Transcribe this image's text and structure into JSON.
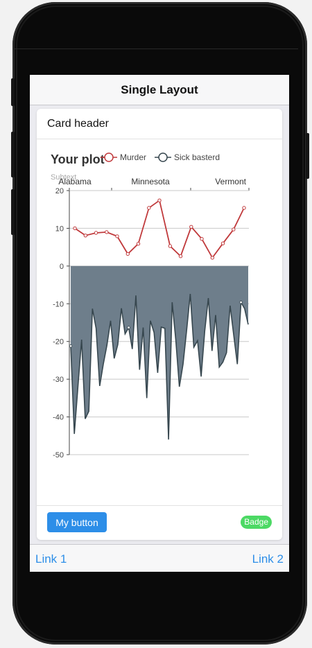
{
  "navbar": {
    "title": "Single Layout"
  },
  "card": {
    "header": "Card header",
    "footer_button": "My button",
    "badge": "Badge"
  },
  "toolbar": {
    "link1": "Link 1",
    "link2": "Link 2"
  },
  "chart_data": {
    "type": "line",
    "title": "Your plot",
    "subtitle": "Subtext",
    "top_axis_labels": [
      "Alabama",
      "Minnesota",
      "Vermont"
    ],
    "ylim": [
      -50,
      20
    ],
    "yticks": [
      20,
      10,
      0,
      -10,
      -20,
      -30,
      -40,
      -50
    ],
    "grid": true,
    "legend_position": "top-right",
    "colors": {
      "murder": "#c0393b",
      "sick": "#37474f",
      "area_fill": "#6e7e8b"
    },
    "series": [
      {
        "name": "Murder",
        "type": "line",
        "values": [
          10,
          8.1,
          8.8,
          9.0,
          7.9,
          3.2,
          5.9,
          15.4,
          17.4,
          5.3,
          2.6,
          10.4,
          7.2,
          2.2,
          6.0,
          9.7,
          15.4
        ]
      },
      {
        "name": "Sick basterd",
        "type": "area",
        "values": [
          -21.2,
          -44.5,
          -32,
          -19.5,
          -40.5,
          -38.5,
          -11.3,
          -16.5,
          -31.8,
          -26,
          -21,
          -14.5,
          -24.5,
          -20.8,
          -11.2,
          -18,
          -16.3,
          -22,
          -7.8,
          -27.5,
          -16.3,
          -35,
          -14.5,
          -17.6,
          -28.3,
          -16.2,
          -16.5,
          -46,
          -9.6,
          -19.5,
          -32,
          -26,
          -17,
          -7.4,
          -21.5,
          -19.8,
          -29.3,
          -17.2,
          -8.5,
          -22.5,
          -13,
          -26.8,
          -25.5,
          -23,
          -10.5,
          -18.3,
          -26,
          -9.6,
          -11.3,
          -15.5
        ]
      }
    ]
  }
}
